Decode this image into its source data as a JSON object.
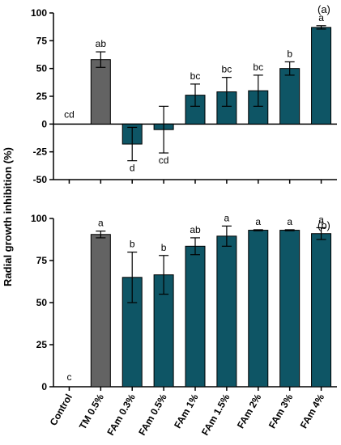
{
  "colors": {
    "control": "#ffffff",
    "tm": "#636363",
    "fam": "#0e5565",
    "axis": "#000000"
  },
  "y_axis_title": "Radial growth inhibition (%)",
  "chart_data": [
    {
      "type": "bar",
      "panel_label": "(a)",
      "categories": [
        "Control",
        "TM 0.5%",
        "FAm 0.3%",
        "FAm 0.5%",
        "FAm 1%",
        "FAm 1.5%",
        "FAm 2%",
        "FAm 3%",
        "FAm 4%"
      ],
      "values": [
        0,
        58,
        -18,
        -5,
        26,
        29,
        30,
        50,
        87
      ],
      "errors": [
        0,
        7,
        15,
        21,
        10,
        13,
        14,
        6,
        1.5
      ],
      "significance": [
        "cd",
        "ab",
        "d",
        "cd",
        "bc",
        "bc",
        "bc",
        "b",
        "a"
      ],
      "ylim": [
        -50,
        100
      ],
      "yticks": [
        -50,
        -25,
        0,
        25,
        50,
        75,
        100
      ],
      "xlabel": "",
      "ylabel": "Radial growth inhibition (%)"
    },
    {
      "type": "bar",
      "panel_label": "(b)",
      "categories": [
        "Control",
        "TM 0.5%",
        "FAm 0.3%",
        "FAm 0.5%",
        "FAm 1%",
        "FAm 1.5%",
        "FAm 2%",
        "FAm 3%",
        "FAm 4%"
      ],
      "values": [
        0,
        90.5,
        65,
        66.5,
        83.5,
        89.5,
        93,
        93,
        91
      ],
      "errors": [
        0,
        2,
        15,
        11.5,
        5,
        6,
        0.3,
        0.3,
        3.5
      ],
      "significance": [
        "c",
        "a",
        "b",
        "b",
        "ab",
        "a",
        "a",
        "a",
        "a"
      ],
      "ylim": [
        0,
        100
      ],
      "yticks": [
        0,
        25,
        50,
        75,
        100
      ],
      "xlabel": "",
      "ylabel": "Radial growth inhibition (%)"
    }
  ]
}
